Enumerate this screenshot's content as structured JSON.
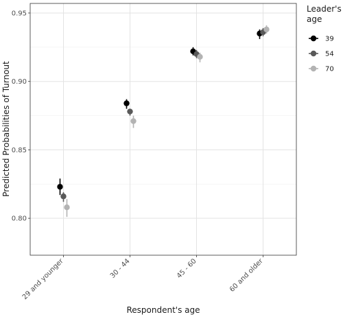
{
  "chart_data": {
    "type": "scatter",
    "xlabel": "Respondent's age",
    "ylabel": "Predicted Probabilities of Turnout",
    "categories": [
      "29 and younger",
      "30 - 44",
      "45 - 60",
      "60 and older"
    ],
    "ylim": [
      0.773,
      0.957
    ],
    "yticks": [
      0.8,
      0.85,
      0.9,
      0.95
    ],
    "ytick_labels": [
      "0.80",
      "0.85",
      "0.90",
      "0.95"
    ],
    "grid": true,
    "legend": {
      "title": "Leader's age",
      "position": "right"
    },
    "series": [
      {
        "name": "39",
        "color": "#000000",
        "values": [
          0.823,
          0.884,
          0.922,
          0.935
        ],
        "lower": [
          0.817,
          0.88,
          0.919,
          0.931
        ],
        "upper": [
          0.829,
          0.887,
          0.925,
          0.938
        ]
      },
      {
        "name": "54",
        "color": "#595959",
        "values": [
          0.816,
          0.878,
          0.92,
          0.936
        ],
        "lower": [
          0.812,
          0.875,
          0.917,
          0.933
        ],
        "upper": [
          0.819,
          0.88,
          0.923,
          0.939
        ]
      },
      {
        "name": "70",
        "color": "#b3b3b3",
        "values": [
          0.808,
          0.871,
          0.918,
          0.938
        ],
        "lower": [
          0.801,
          0.866,
          0.914,
          0.935
        ],
        "upper": [
          0.814,
          0.875,
          0.921,
          0.941
        ]
      }
    ]
  }
}
